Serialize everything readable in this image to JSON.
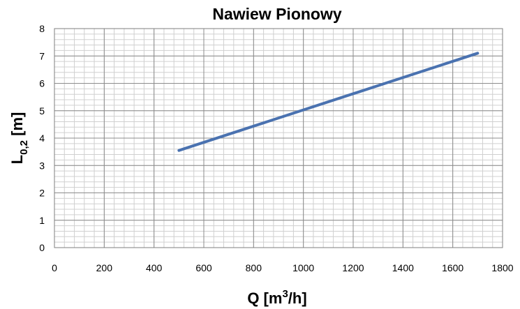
{
  "chart_data": {
    "type": "line",
    "title": "Nawiew Pionowy",
    "xlabel": {
      "main": "Q [m",
      "sup": "3",
      "tail": "/h]"
    },
    "ylabel": {
      "main": "L",
      "sub": "0,2",
      "tail": " [m]"
    },
    "xlim": [
      0,
      1800
    ],
    "ylim": [
      0,
      8
    ],
    "x_ticks": [
      0,
      200,
      400,
      600,
      800,
      1000,
      1200,
      1400,
      1600,
      1800
    ],
    "y_ticks": [
      0,
      1,
      2,
      3,
      4,
      5,
      6,
      7,
      8
    ],
    "grid": true,
    "series": [
      {
        "color": "#4a72b0",
        "x": [
          500,
          1700
        ],
        "y": [
          3.55,
          7.1
        ]
      }
    ]
  }
}
